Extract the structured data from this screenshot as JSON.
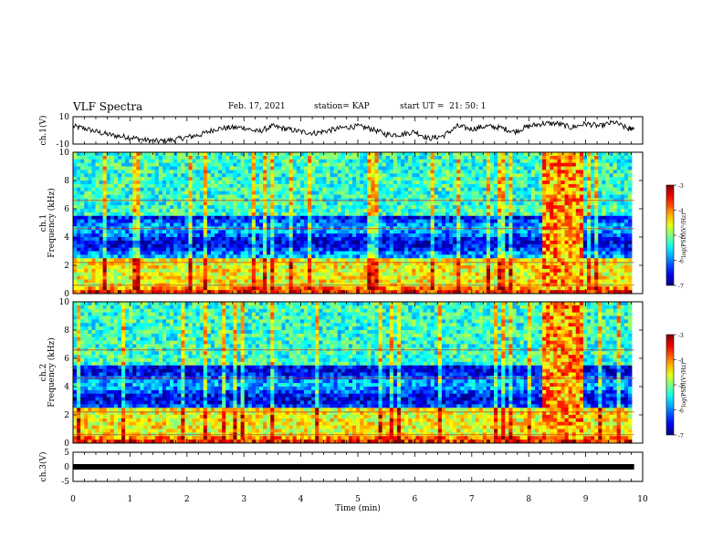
{
  "header": {
    "title": "VLF Spectra",
    "date": "Feb. 17, 2021",
    "station": "station= KAP",
    "start": "start UT =  21: 50: 1"
  },
  "chart_data": [
    {
      "type": "line",
      "panel": "ch1-voltage",
      "ylabel": "ch.1(V)",
      "ylim": [
        -10,
        10
      ],
      "yticks": [
        "10",
        "-10"
      ],
      "x": [
        0,
        0.25,
        0.5,
        0.75,
        1.0,
        1.25,
        1.5,
        1.75,
        2.0,
        2.25,
        2.5,
        2.75,
        3.0,
        3.25,
        3.5,
        3.75,
        4.0,
        4.25,
        4.5,
        4.75,
        5.0,
        5.25,
        5.5,
        5.75,
        6.0,
        6.25,
        6.5,
        6.75,
        7.0,
        7.25,
        7.5,
        7.75,
        8.0,
        8.25,
        8.5,
        8.75,
        9.0,
        9.25,
        9.5,
        9.75,
        9.85
      ],
      "values": [
        3,
        1,
        -2,
        -4,
        -5,
        -7,
        -8,
        -7,
        -5,
        -3,
        1,
        2,
        2,
        -1,
        3,
        1,
        -1,
        -2,
        0,
        2,
        3,
        1,
        -3,
        -3,
        -1,
        -6,
        -4,
        3,
        1,
        3,
        2,
        -1,
        3,
        5,
        5,
        2,
        5,
        3,
        6,
        1,
        2
      ]
    },
    {
      "type": "heatmap",
      "panel": "ch1-spectrogram",
      "ylabel": "ch.1\nFrequency (kHz)",
      "ylim": [
        0,
        10
      ],
      "yticks": [
        "0",
        "2",
        "4",
        "6",
        "8",
        "10"
      ],
      "colorbar": {
        "label": "log(PSD)(V²/Hz)",
        "range": [
          -7,
          -3
        ],
        "ticks": [
          "-3",
          "-4",
          "-5",
          "-6",
          "-7"
        ]
      },
      "burst": {
        "x_start": 8.3,
        "x_end": 8.95
      }
    },
    {
      "type": "heatmap",
      "panel": "ch2-spectrogram",
      "ylabel": "ch.2\nFrequency (kHz)",
      "ylim": [
        0,
        10
      ],
      "yticks": [
        "0",
        "2",
        "4",
        "6",
        "8",
        "10"
      ],
      "colorbar": {
        "label": "log(PSD)(V²/Hz)",
        "range": [
          -7,
          -3
        ],
        "ticks": [
          "-3",
          "-4",
          "-5",
          "-6",
          "-7"
        ]
      },
      "burst": {
        "x_start": 8.3,
        "x_end": 8.95
      }
    },
    {
      "type": "line",
      "panel": "ch3-voltage",
      "ylabel": "ch.3(V)",
      "ylim": [
        -5,
        5
      ],
      "yticks": [
        "5",
        "0",
        "-5"
      ],
      "x": [
        0,
        9.85
      ],
      "values": [
        0,
        0
      ]
    }
  ],
  "xaxis": {
    "label": "Time (min)",
    "range": [
      0,
      10
    ],
    "ticks": [
      "0",
      "1",
      "2",
      "3",
      "4",
      "5",
      "6",
      "7",
      "8",
      "9",
      "10"
    ]
  }
}
